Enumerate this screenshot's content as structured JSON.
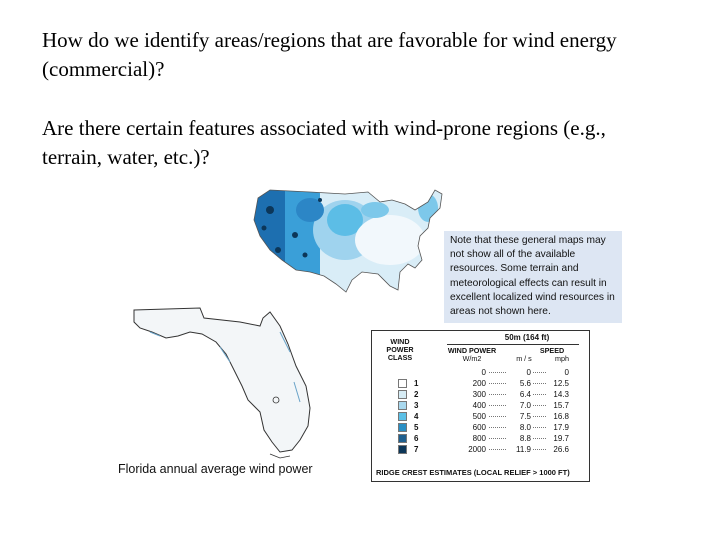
{
  "question1": "How do we identify areas/regions that are favorable for wind energy (commercial)?",
  "question2": "Are there certain features associated with wind-prone regions (e.g., terrain, water, etc.)?",
  "note": "Note that these general maps may not show all of the available resources. Some terrain and meteorological effects can result in excellent localized wind resources in areas not shown here.",
  "florida_caption": "Florida annual average wind power",
  "legend": {
    "class_header": "WIND POWER CLASS",
    "height_header": "50m (164 ft)",
    "power_header": "WIND POWER",
    "power_unit": "W/m2",
    "speed_header": "SPEED",
    "ms_unit": "m / s",
    "mph_unit": "mph",
    "rows": [
      {
        "cls": "",
        "power": "0",
        "ms": "0",
        "mph": "0"
      },
      {
        "cls": "1",
        "power": "200",
        "ms": "5.6",
        "mph": "12.5"
      },
      {
        "cls": "2",
        "power": "300",
        "ms": "6.4",
        "mph": "14.3"
      },
      {
        "cls": "3",
        "power": "400",
        "ms": "7.0",
        "mph": "15.7"
      },
      {
        "cls": "4",
        "power": "500",
        "ms": "7.5",
        "mph": "16.8"
      },
      {
        "cls": "5",
        "power": "600",
        "ms": "8.0",
        "mph": "17.9"
      },
      {
        "cls": "6",
        "power": "800",
        "ms": "8.8",
        "mph": "19.7"
      },
      {
        "cls": "7",
        "power": "2000",
        "ms": "11.9",
        "mph": "26.6"
      }
    ],
    "class_colors": [
      "#ffffff",
      "#d6ecf5",
      "#a8d8ee",
      "#5cc0e6",
      "#2a8fc4",
      "#1f5f8e",
      "#0c3658"
    ],
    "footer": "RIDGE CREST ESTIMATES (LOCAL RELIEF > 1000 FT)"
  }
}
